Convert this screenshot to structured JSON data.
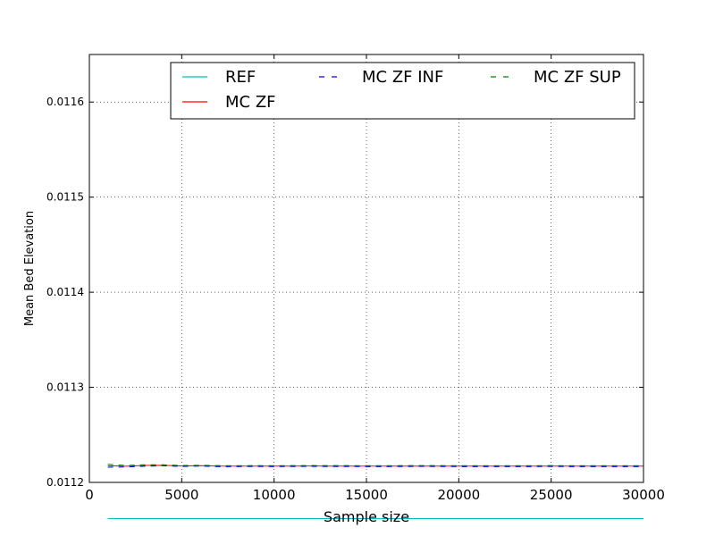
{
  "chart_data": {
    "type": "line",
    "xlabel": "Sample size",
    "ylabel": "Mean Bed Elevation",
    "xlim": [
      0,
      30000
    ],
    "ylim": [
      0.0112,
      0.01165
    ],
    "x_ticks": [
      0,
      5000,
      10000,
      15000,
      20000,
      25000,
      30000
    ],
    "y_ticks": [
      0.0112,
      0.0113,
      0.0114,
      0.0115,
      0.0116
    ],
    "x_tick_labels": [
      "0",
      "5000",
      "10000",
      "15000",
      "20000",
      "25000",
      "30000"
    ],
    "y_tick_labels": [
      "0.0112",
      "0.0113",
      "0.0114",
      "0.0115",
      "0.0116"
    ],
    "grid": true,
    "legend_position": "top",
    "x": [
      1000,
      2000,
      3000,
      4000,
      5000,
      6000,
      7000,
      8000,
      9000,
      10000,
      11000,
      12000,
      13000,
      14000,
      15000,
      16000,
      17000,
      18000,
      19000,
      20000,
      21000,
      22000,
      23000,
      24000,
      25000,
      26000,
      27000,
      28000,
      29000,
      30000
    ],
    "series": [
      {
        "name": "REF",
        "color": "#00bfbf",
        "dash": "solid",
        "values": [
          0.011162,
          0.011162,
          0.011162,
          0.011162,
          0.011162,
          0.011162,
          0.011162,
          0.011162,
          0.011162,
          0.011162,
          0.011162,
          0.011162,
          0.011162,
          0.011162,
          0.011162,
          0.011162,
          0.011162,
          0.011162,
          0.011162,
          0.011162,
          0.011162,
          0.011162,
          0.011162,
          0.011162,
          0.011162,
          0.011162,
          0.011162,
          0.011162,
          0.011162,
          0.011162
        ]
      },
      {
        "name": "MC ZF",
        "color": "#ff0000",
        "dash": "solid",
        "values": [
          0.0112175,
          0.011217,
          0.0112178,
          0.011218,
          0.0112173,
          0.0112176,
          0.0112172,
          0.0112171,
          0.0112172,
          0.0112171,
          0.0112172,
          0.0112173,
          0.0112172,
          0.0112172,
          0.0112171,
          0.0112171,
          0.0112172,
          0.0112172,
          0.0112172,
          0.0112171,
          0.0112171,
          0.0112171,
          0.0112171,
          0.0112171,
          0.0112172,
          0.0112171,
          0.0112171,
          0.0112171,
          0.0112171,
          0.0112171
        ]
      },
      {
        "name": "MC ZF INF",
        "color": "#0000ff",
        "dash": "dashed",
        "values": [
          0.011216,
          0.0112162,
          0.011217,
          0.0112175,
          0.0112168,
          0.0112172,
          0.0112166,
          0.0112166,
          0.0112167,
          0.0112166,
          0.0112167,
          0.0112168,
          0.0112167,
          0.0112167,
          0.0112166,
          0.0112166,
          0.0112167,
          0.0112168,
          0.0112167,
          0.0112166,
          0.0112166,
          0.0112166,
          0.0112166,
          0.0112166,
          0.0112167,
          0.0112166,
          0.0112166,
          0.0112166,
          0.0112166,
          0.0112166
        ]
      },
      {
        "name": "MC ZF SUP",
        "color": "#008000",
        "dash": "dashed",
        "values": [
          0.011219,
          0.0112178,
          0.0112186,
          0.0112185,
          0.0112178,
          0.011218,
          0.0112177,
          0.0112176,
          0.0112177,
          0.0112176,
          0.0112177,
          0.0112178,
          0.0112177,
          0.0112177,
          0.0112176,
          0.0112176,
          0.0112177,
          0.0112177,
          0.0112177,
          0.0112176,
          0.0112176,
          0.0112176,
          0.0112176,
          0.0112176,
          0.0112177,
          0.0112176,
          0.0112176,
          0.0112176,
          0.0112176,
          0.0112176
        ]
      }
    ]
  }
}
